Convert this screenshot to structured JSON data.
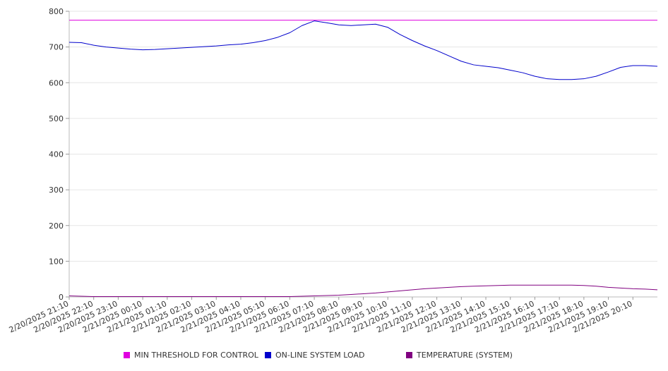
{
  "chart_data": {
    "type": "line",
    "ylim": [
      0,
      800
    ],
    "yticks": [
      0,
      100,
      200,
      300,
      400,
      500,
      600,
      700,
      800
    ],
    "grid": "horizontal",
    "legend_placement": "bottom",
    "xlabels": [
      "2/20/2025 21:10",
      "2/20/2025 22:10",
      "2/20/2025 23:10",
      "2/21/2025 00:10",
      "2/21/2025 01:10",
      "2/21/2025 02:10",
      "2/21/2025 03:10",
      "2/21/2025 04:10",
      "2/21/2025 05:10",
      "2/21/2025 06:10",
      "2/21/2025 07:10",
      "2/21/2025 08:10",
      "2/21/2025 09:10",
      "2/21/2025 10:10",
      "2/21/2025 11:10",
      "2/21/2025 12:10",
      "2/21/2025 13:10",
      "2/21/2025 14:10",
      "2/21/2025 15:10",
      "2/21/2025 16:10",
      "2/21/2025 17:10",
      "2/21/2025 18:10",
      "2/21/2025 19:10",
      "2/21/2025 20:10"
    ],
    "x_hours": [
      0,
      0.5,
      1,
      1.5,
      2,
      2.5,
      3,
      3.5,
      4,
      4.5,
      5,
      5.5,
      6,
      6.5,
      7,
      7.5,
      8,
      8.5,
      9,
      9.5,
      10,
      10.5,
      11,
      11.5,
      12,
      12.5,
      13,
      13.5,
      14,
      14.5,
      15,
      15.5,
      16,
      16.5,
      17,
      17.5,
      18,
      18.5,
      19,
      19.5,
      20,
      20.5,
      21,
      21.5,
      22,
      22.5,
      23,
      23.5,
      24
    ],
    "series": [
      {
        "name": "MIN THRESHOLD FOR CONTROL",
        "color": "#e000e0",
        "values": [
          775,
          775,
          775,
          775,
          775,
          775,
          775,
          775,
          775,
          775,
          775,
          775,
          775,
          775,
          775,
          775,
          775,
          775,
          775,
          775,
          775,
          775,
          775,
          775,
          775,
          775,
          775,
          775,
          775,
          775,
          775,
          775,
          775,
          775,
          775,
          775,
          775,
          775,
          775,
          775,
          775,
          775,
          775,
          775,
          775,
          775,
          775,
          775,
          775
        ]
      },
      {
        "name": "ON-LINE SYSTEM LOAD",
        "color": "#0000cc",
        "values": [
          713,
          712,
          705,
          700,
          697,
          694,
          692,
          693,
          695,
          697,
          699,
          701,
          703,
          706,
          708,
          712,
          718,
          727,
          740,
          760,
          773,
          768,
          762,
          760,
          762,
          764,
          755,
          735,
          718,
          703,
          690,
          675,
          660,
          650,
          646,
          642,
          635,
          628,
          618,
          611,
          609,
          609,
          611,
          618,
          630,
          643,
          648,
          648,
          646
        ]
      },
      {
        "name": "TEMPERATURE (SYSTEM)",
        "color": "#800080",
        "values": [
          3,
          2,
          1,
          1,
          1,
          1,
          1,
          1,
          1,
          1,
          1,
          1,
          1,
          1,
          1,
          1,
          1,
          1,
          1,
          2,
          3,
          4,
          5,
          7,
          9,
          11,
          14,
          17,
          20,
          23,
          25,
          27,
          29,
          30,
          31,
          32,
          33,
          33,
          33,
          33,
          33,
          33,
          32,
          30,
          27,
          25,
          23,
          22,
          20
        ]
      }
    ]
  }
}
